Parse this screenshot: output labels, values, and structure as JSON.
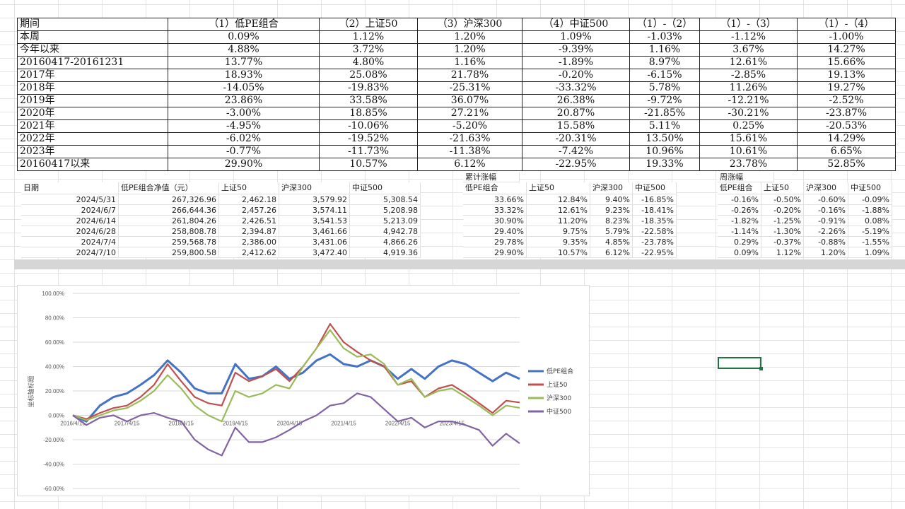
{
  "summary_table": {
    "headers": [
      "期间",
      "（1）低PE组合",
      "（2）上证50",
      "（3）沪深300",
      "（4）中证500",
      "（1）-（2）",
      "（1）-（3）",
      "（1）-（4）"
    ],
    "rows": [
      [
        "本周",
        "0.09%",
        "1.12%",
        "1.20%",
        "1.09%",
        "-1.03%",
        "-1.12%",
        "-1.00%"
      ],
      [
        "今年以来",
        "4.88%",
        "3.72%",
        "1.20%",
        "-9.39%",
        "1.16%",
        "3.67%",
        "14.27%"
      ],
      [
        "20160417-20161231",
        "13.77%",
        "4.80%",
        "1.16%",
        "-1.89%",
        "8.97%",
        "12.61%",
        "15.66%"
      ],
      [
        "2017年",
        "18.93%",
        "25.08%",
        "21.78%",
        "-0.20%",
        "-6.15%",
        "-2.85%",
        "19.13%"
      ],
      [
        "2018年",
        "-14.05%",
        "-19.83%",
        "-25.31%",
        "-33.32%",
        "5.78%",
        "11.26%",
        "19.27%"
      ],
      [
        "2019年",
        "23.86%",
        "33.58%",
        "36.07%",
        "26.38%",
        "-9.72%",
        "-12.21%",
        "-2.52%"
      ],
      [
        "2020年",
        "-3.00%",
        "18.85%",
        "27.21%",
        "20.87%",
        "-21.85%",
        "-30.21%",
        "-23.87%"
      ],
      [
        "2021年",
        "-4.95%",
        "-10.06%",
        "-5.20%",
        "15.58%",
        "5.11%",
        "0.25%",
        "-20.53%"
      ],
      [
        "2022年",
        "-6.02%",
        "-19.52%",
        "-21.63%",
        "-20.31%",
        "13.50%",
        "15.61%",
        "14.29%"
      ],
      [
        "2023年",
        "-0.77%",
        "-11.73%",
        "-11.38%",
        "-7.42%",
        "10.96%",
        "10.61%",
        "6.65%"
      ],
      [
        "20160417以来",
        "29.90%",
        "10.57%",
        "6.12%",
        "-22.95%",
        "19.33%",
        "23.78%",
        "52.85%"
      ]
    ]
  },
  "nav_table": {
    "headers": [
      "日期",
      "低PE组合净值（元）",
      "上证50",
      "沪深300",
      "中证500"
    ],
    "rows": [
      [
        "2024/5/31",
        "267,326.96",
        "2,462.18",
        "3,579.92",
        "5,308.54"
      ],
      [
        "2024/6/7",
        "266,644.36",
        "2,457.26",
        "3,574.11",
        "5,208.98"
      ],
      [
        "2024/6/14",
        "261,804.26",
        "2,426.51",
        "3,541.53",
        "5,213.09"
      ],
      [
        "2024/6/28",
        "258,808.78",
        "2,394.87",
        "3,461.66",
        "4,942.78"
      ],
      [
        "2024/7/4",
        "259,568.78",
        "2,386.00",
        "3,431.06",
        "4,866.26"
      ],
      [
        "2024/7/10",
        "259,800.58",
        "2,412.62",
        "3,472.40",
        "4,919.36"
      ]
    ]
  },
  "cum_table": {
    "title": "累计涨幅",
    "headers": [
      "低PE组合",
      "上证50",
      "沪深300",
      "中证500"
    ],
    "rows": [
      [
        "33.66%",
        "12.84%",
        "9.40%",
        "-16.85%"
      ],
      [
        "33.32%",
        "12.61%",
        "9.23%",
        "-18.41%"
      ],
      [
        "30.90%",
        "11.20%",
        "8.23%",
        "-18.35%"
      ],
      [
        "29.40%",
        "9.75%",
        "5.79%",
        "-22.58%"
      ],
      [
        "29.78%",
        "9.35%",
        "4.85%",
        "-23.78%"
      ],
      [
        "29.90%",
        "10.57%",
        "6.12%",
        "-22.95%"
      ]
    ]
  },
  "week_table": {
    "title": "周涨幅",
    "headers": [
      "低PE组合",
      "上证50",
      "沪深300",
      "中证500"
    ],
    "rows": [
      [
        "-0.16%",
        "-0.50%",
        "-0.60%",
        "-0.09%"
      ],
      [
        "-0.26%",
        "-0.20%",
        "-0.16%",
        "-1.88%"
      ],
      [
        "-1.82%",
        "-1.25%",
        "-0.91%",
        "0.08%"
      ],
      [
        "-1.14%",
        "-1.30%",
        "-2.26%",
        "-5.19%"
      ],
      [
        "0.29%",
        "-0.37%",
        "-0.88%",
        "-1.55%"
      ],
      [
        "0.09%",
        "1.12%",
        "1.20%",
        "1.09%"
      ]
    ]
  },
  "chart_data": {
    "type": "line",
    "ylabel": "坐标轴标题",
    "ylim": [
      -60,
      100
    ],
    "yticks": [
      "100.00%",
      "80.00%",
      "60.00%",
      "40.00%",
      "20.00%",
      "0.00%",
      "-20.00%",
      "-40.00%",
      "-60.00%"
    ],
    "xticks": [
      "2016/4/15",
      "2017/4/15",
      "2018/4/15",
      "2019/4/15",
      "2020/4/15",
      "2021/4/15",
      "2022/4/15",
      "2023/4/15"
    ],
    "grid": true,
    "legend": "right",
    "x": [
      "2016/4",
      "2016/7",
      "2016/10",
      "2017/1",
      "2017/4",
      "2017/7",
      "2017/10",
      "2018/1",
      "2018/4",
      "2018/7",
      "2018/10",
      "2019/1",
      "2019/4",
      "2019/7",
      "2019/10",
      "2020/1",
      "2020/4",
      "2020/7",
      "2020/10",
      "2021/1",
      "2021/4",
      "2021/7",
      "2021/10",
      "2022/1",
      "2022/4",
      "2022/7",
      "2022/10",
      "2023/1",
      "2023/4",
      "2023/7",
      "2023/10",
      "2024/1",
      "2024/4",
      "2024/7"
    ],
    "series": [
      {
        "name": "低PE组合",
        "color": "#4472c4",
        "values": [
          0,
          -5,
          8,
          15,
          18,
          25,
          33,
          45,
          35,
          22,
          18,
          18,
          42,
          30,
          32,
          40,
          30,
          35,
          45,
          50,
          42,
          40,
          45,
          40,
          30,
          38,
          30,
          40,
          45,
          42,
          35,
          28,
          35,
          29.9
        ]
      },
      {
        "name": "上证50",
        "color": "#c0504d",
        "values": [
          0,
          -3,
          2,
          6,
          8,
          15,
          25,
          42,
          28,
          15,
          10,
          8,
          35,
          28,
          32,
          38,
          28,
          40,
          55,
          75,
          60,
          52,
          45,
          40,
          25,
          28,
          15,
          22,
          25,
          18,
          10,
          2,
          12,
          10.57
        ]
      },
      {
        "name": "沪深300",
        "color": "#9bbb59",
        "values": [
          0,
          -4,
          0,
          4,
          6,
          12,
          20,
          33,
          22,
          8,
          0,
          -5,
          20,
          15,
          18,
          25,
          22,
          40,
          55,
          70,
          55,
          48,
          50,
          42,
          25,
          30,
          15,
          20,
          22,
          15,
          8,
          0,
          8,
          6.12
        ]
      },
      {
        "name": "中证500",
        "color": "#8064a2",
        "values": [
          0,
          -8,
          -2,
          0,
          -5,
          0,
          2,
          -2,
          -5,
          -20,
          -28,
          -33,
          -10,
          -22,
          -22,
          -18,
          -12,
          -5,
          0,
          8,
          10,
          18,
          15,
          5,
          -5,
          -2,
          -10,
          -5,
          -5,
          -8,
          -12,
          -25,
          -15,
          -22.95
        ]
      }
    ]
  }
}
